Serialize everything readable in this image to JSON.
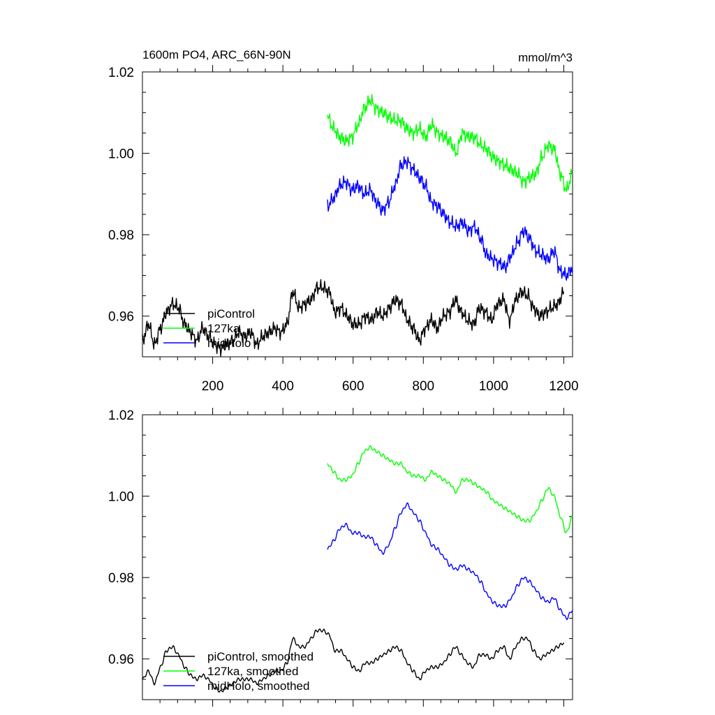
{
  "header": {
    "title": "1600m PO4, ARC_66N-90N",
    "units": "mmol/m^3"
  },
  "colors": {
    "piControl": "#000000",
    "127ka": "#00ff00",
    "midHolo": "#0000ff",
    "axes": "#000000"
  },
  "chart_data": [
    {
      "type": "line",
      "title": "1600m PO4, ARC_66N-90N",
      "units": "mmol/m^3",
      "xlim": [
        0,
        1225
      ],
      "ylim": [
        0.95,
        1.02
      ],
      "x_ticks": [
        200,
        400,
        600,
        800,
        1000,
        1200
      ],
      "x_tick_labels": [
        "200",
        "400",
        "600",
        "800",
        "1000",
        "1200"
      ],
      "y_ticks": [
        0.96,
        0.98,
        1.0,
        1.02
      ],
      "y_tick_labels": [
        "0.96",
        "0.98",
        "1.00",
        "1.02"
      ],
      "legend": "bottom-left",
      "series": [
        {
          "name": "piControl",
          "key": "piControl",
          "x_start": 0,
          "x_end": 1200,
          "values": [
            0.954,
            0.958,
            0.953,
            0.957,
            0.961,
            0.963,
            0.962,
            0.958,
            0.956,
            0.954,
            0.957,
            0.955,
            0.953,
            0.952,
            0.953,
            0.954,
            0.956,
            0.955,
            0.956,
            0.953,
            0.955,
            0.956,
            0.957,
            0.956,
            0.958,
            0.966,
            0.962,
            0.963,
            0.964,
            0.967,
            0.967,
            0.966,
            0.961,
            0.962,
            0.96,
            0.958,
            0.958,
            0.96,
            0.959,
            0.961,
            0.96,
            0.962,
            0.964,
            0.963,
            0.959,
            0.957,
            0.954,
            0.957,
            0.959,
            0.957,
            0.96,
            0.961,
            0.964,
            0.961,
            0.959,
            0.958,
            0.962,
            0.961,
            0.959,
            0.963,
            0.964,
            0.959,
            0.964,
            0.966,
            0.965,
            0.962,
            0.96,
            0.961,
            0.962,
            0.963,
            0.966
          ],
          "smoothed": false
        },
        {
          "name": "127ka",
          "key": "127ka",
          "x_start": 527,
          "x_end": 1225,
          "values": [
            1.009,
            1.006,
            1.004,
            1.003,
            1.004,
            1.007,
            1.011,
            1.013,
            1.011,
            1.01,
            1.009,
            1.008,
            1.008,
            1.006,
            1.005,
            1.006,
            1.004,
            1.007,
            1.005,
            1.004,
            1.003,
            1.0,
            1.005,
            1.004,
            1.004,
            1.002,
            1.001,
            0.999,
            0.998,
            0.997,
            0.996,
            0.995,
            0.993,
            0.994,
            0.995,
            0.999,
            1.002,
            1.001,
            0.995,
            0.991,
            0.995
          ],
          "smoothed": false
        },
        {
          "name": "midHolo",
          "key": "midHolo",
          "x_start": 527,
          "x_end": 1225,
          "values": [
            0.987,
            0.989,
            0.992,
            0.993,
            0.991,
            0.992,
            0.99,
            0.991,
            0.988,
            0.986,
            0.988,
            0.992,
            0.997,
            0.998,
            0.996,
            0.994,
            0.992,
            0.988,
            0.987,
            0.985,
            0.983,
            0.982,
            0.983,
            0.981,
            0.982,
            0.979,
            0.975,
            0.974,
            0.973,
            0.972,
            0.975,
            0.978,
            0.981,
            0.979,
            0.976,
            0.975,
            0.974,
            0.976,
            0.971,
            0.97,
            0.972
          ],
          "smoothed": false
        }
      ]
    },
    {
      "type": "line",
      "xlim": [
        0,
        1225
      ],
      "ylim": [
        0.95,
        1.02
      ],
      "x_ticks": [
        200,
        400,
        600,
        800,
        1000,
        1200
      ],
      "x_tick_labels": [],
      "y_ticks": [
        0.96,
        0.98,
        1.0,
        1.02
      ],
      "y_tick_labels": [
        "0.96",
        "0.98",
        "1.00",
        "1.02"
      ],
      "legend": "bottom-left",
      "series": [
        {
          "name": "piControl, smoothed",
          "key": "piControl",
          "x_start": 0,
          "x_end": 1200,
          "values": [
            0.955,
            0.957,
            0.954,
            0.958,
            0.962,
            0.963,
            0.961,
            0.958,
            0.956,
            0.955,
            0.956,
            0.955,
            0.953,
            0.952,
            0.953,
            0.954,
            0.955,
            0.955,
            0.955,
            0.954,
            0.955,
            0.956,
            0.957,
            0.957,
            0.959,
            0.965,
            0.963,
            0.963,
            0.965,
            0.967,
            0.967,
            0.966,
            0.962,
            0.962,
            0.96,
            0.958,
            0.957,
            0.959,
            0.959,
            0.96,
            0.961,
            0.962,
            0.963,
            0.962,
            0.959,
            0.957,
            0.955,
            0.957,
            0.958,
            0.958,
            0.959,
            0.961,
            0.963,
            0.961,
            0.959,
            0.958,
            0.961,
            0.961,
            0.96,
            0.962,
            0.963,
            0.96,
            0.963,
            0.965,
            0.965,
            0.962,
            0.96,
            0.961,
            0.962,
            0.963,
            0.964
          ],
          "smoothed": true
        },
        {
          "name": "127ka, smoothed",
          "key": "127ka",
          "x_start": 527,
          "x_end": 1225,
          "values": [
            1.008,
            1.006,
            1.004,
            1.004,
            1.005,
            1.008,
            1.011,
            1.012,
            1.011,
            1.01,
            1.009,
            1.008,
            1.008,
            1.006,
            1.005,
            1.005,
            1.004,
            1.006,
            1.005,
            1.004,
            1.003,
            1.001,
            1.004,
            1.004,
            1.003,
            1.002,
            1.001,
            0.999,
            0.998,
            0.997,
            0.996,
            0.995,
            0.994,
            0.994,
            0.996,
            0.999,
            1.002,
            1.0,
            0.995,
            0.991,
            0.995
          ],
          "smoothed": true
        },
        {
          "name": "midHolo, smoothed",
          "key": "midHolo",
          "x_start": 527,
          "x_end": 1225,
          "values": [
            0.987,
            0.989,
            0.992,
            0.993,
            0.991,
            0.991,
            0.99,
            0.99,
            0.988,
            0.986,
            0.988,
            0.992,
            0.996,
            0.998,
            0.996,
            0.994,
            0.991,
            0.988,
            0.987,
            0.985,
            0.983,
            0.982,
            0.983,
            0.982,
            0.981,
            0.979,
            0.976,
            0.974,
            0.973,
            0.973,
            0.975,
            0.978,
            0.98,
            0.979,
            0.977,
            0.975,
            0.974,
            0.975,
            0.972,
            0.97,
            0.972
          ],
          "smoothed": true
        }
      ]
    }
  ]
}
